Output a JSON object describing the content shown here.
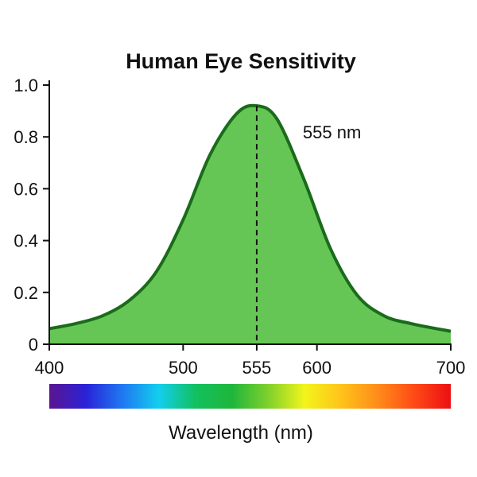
{
  "chart_data": {
    "type": "area",
    "title": "Human Eye Sensitivity",
    "xlabel": "Wavelength (nm)",
    "ylabel": "",
    "xlim": [
      400,
      700
    ],
    "ylim": [
      0,
      1.0
    ],
    "x_ticks": [
      {
        "value": 400,
        "label": "400"
      },
      {
        "value": 500,
        "label": "500"
      },
      {
        "value": 555,
        "label": "555"
      },
      {
        "value": 600,
        "label": "600"
      },
      {
        "value": 700,
        "label": "700"
      }
    ],
    "y_ticks": [
      {
        "value": 0,
        "label": "0"
      },
      {
        "value": 0.2,
        "label": "0.2"
      },
      {
        "value": 0.4,
        "label": "0.4"
      },
      {
        "value": 0.6,
        "label": "0.6"
      },
      {
        "value": 0.8,
        "label": "0.8"
      },
      {
        "value": 1.0,
        "label": "1.0"
      }
    ],
    "x": [
      400,
      420,
      440,
      460,
      480,
      500,
      520,
      540,
      555,
      570,
      590,
      610,
      630,
      650,
      670,
      700
    ],
    "y": [
      0.06,
      0.08,
      0.11,
      0.17,
      0.28,
      0.48,
      0.73,
      0.89,
      0.92,
      0.87,
      0.64,
      0.37,
      0.19,
      0.11,
      0.08,
      0.05
    ],
    "peak": {
      "x": 555,
      "y": 0.92,
      "label": "555 nm"
    },
    "grid": false,
    "colors": {
      "fill": "#66c655",
      "line": "#1a6b1a",
      "axis": "#111111",
      "spectrum": [
        "#5b1590",
        "#2a22d8",
        "#1f78f2",
        "#12cfee",
        "#12c060",
        "#1fb63b",
        "#7fd02c",
        "#f2f51b",
        "#ffc31a",
        "#ff8c1a",
        "#ff4a16",
        "#ec0f12"
      ]
    }
  }
}
